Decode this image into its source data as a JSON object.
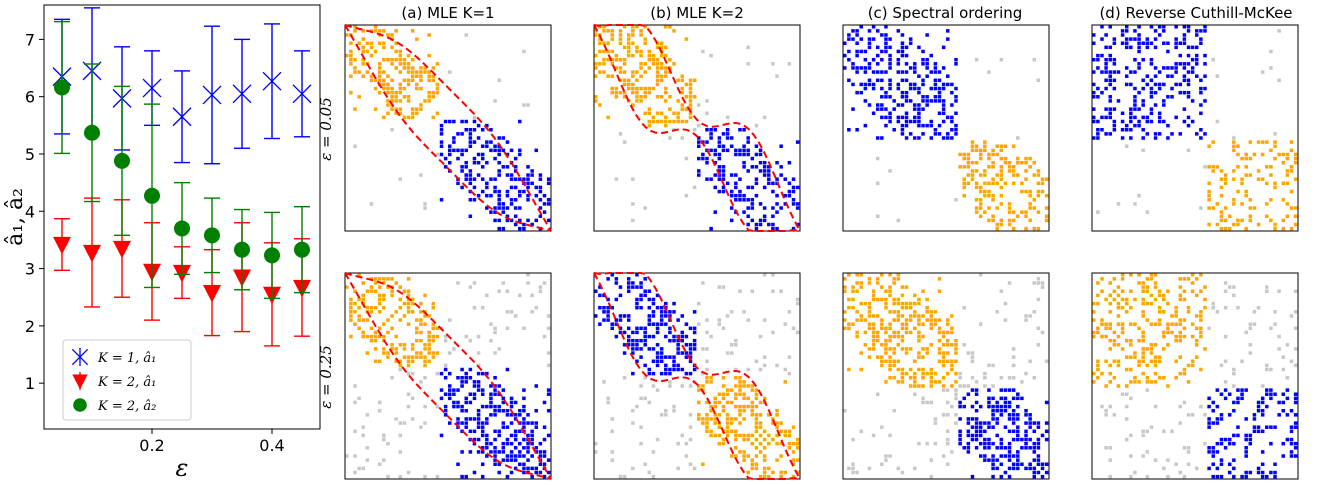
{
  "chart_data": [
    {
      "type": "scatter",
      "xlabel": "ε",
      "ylabel": "â₁,  â₂",
      "xlim": [
        0.02,
        0.48
      ],
      "ylim": [
        0.2,
        7.6
      ],
      "xticks": [
        0.2,
        0.4
      ],
      "xtick_labels": [
        "0.2",
        "0.4"
      ],
      "yticks": [
        1,
        2,
        3,
        4,
        5,
        6,
        7
      ],
      "ytick_labels": [
        "1",
        "2",
        "3",
        "4",
        "5",
        "6",
        "7"
      ],
      "legend_position": "lower-left",
      "grid": false,
      "series": [
        {
          "name": "K = 1,  â₁",
          "marker": "x",
          "color": "#0000ff",
          "x": [
            0.05,
            0.1,
            0.15,
            0.2,
            0.25,
            0.3,
            0.35,
            0.4,
            0.45
          ],
          "y": [
            6.35,
            6.45,
            5.97,
            6.15,
            5.65,
            6.03,
            6.05,
            6.27,
            6.05
          ],
          "err": [
            1.0,
            1.1,
            0.9,
            0.65,
            0.8,
            1.2,
            0.95,
            1.0,
            0.75
          ]
        },
        {
          "name": "K = 2,  â₁",
          "marker": "v",
          "color": "#ff0000",
          "x": [
            0.05,
            0.1,
            0.15,
            0.2,
            0.25,
            0.3,
            0.35,
            0.4,
            0.45
          ],
          "y": [
            3.42,
            3.28,
            3.35,
            2.95,
            2.93,
            2.58,
            2.85,
            2.55,
            2.67
          ],
          "err": [
            0.45,
            0.95,
            0.85,
            0.85,
            0.45,
            0.75,
            0.95,
            0.9,
            0.85
          ]
        },
        {
          "name": "K = 2,  â₂",
          "marker": "o",
          "color": "#008000",
          "x": [
            0.05,
            0.1,
            0.15,
            0.2,
            0.25,
            0.3,
            0.35,
            0.4,
            0.45
          ],
          "y": [
            6.16,
            5.37,
            4.88,
            4.27,
            3.7,
            3.58,
            3.33,
            3.23,
            3.33
          ],
          "err": [
            1.15,
            1.2,
            1.3,
            1.6,
            0.8,
            0.65,
            0.7,
            0.75,
            0.75
          ]
        }
      ]
    },
    {
      "type": "heatmap",
      "column_titles": [
        "(a) MLE K=1",
        "(b) MLE K=2",
        "(c) Spectral ordering",
        "(d) Reverse Cuthill-McKee"
      ],
      "row_labels": [
        "ε = 0.05",
        "ε = 0.25"
      ],
      "cell_colors": {
        "group_1": "#ffa500",
        "group_2": "#0000ff",
        "between_groups": "#c8c8c8"
      },
      "boundary_color": "#ff0000"
    }
  ]
}
